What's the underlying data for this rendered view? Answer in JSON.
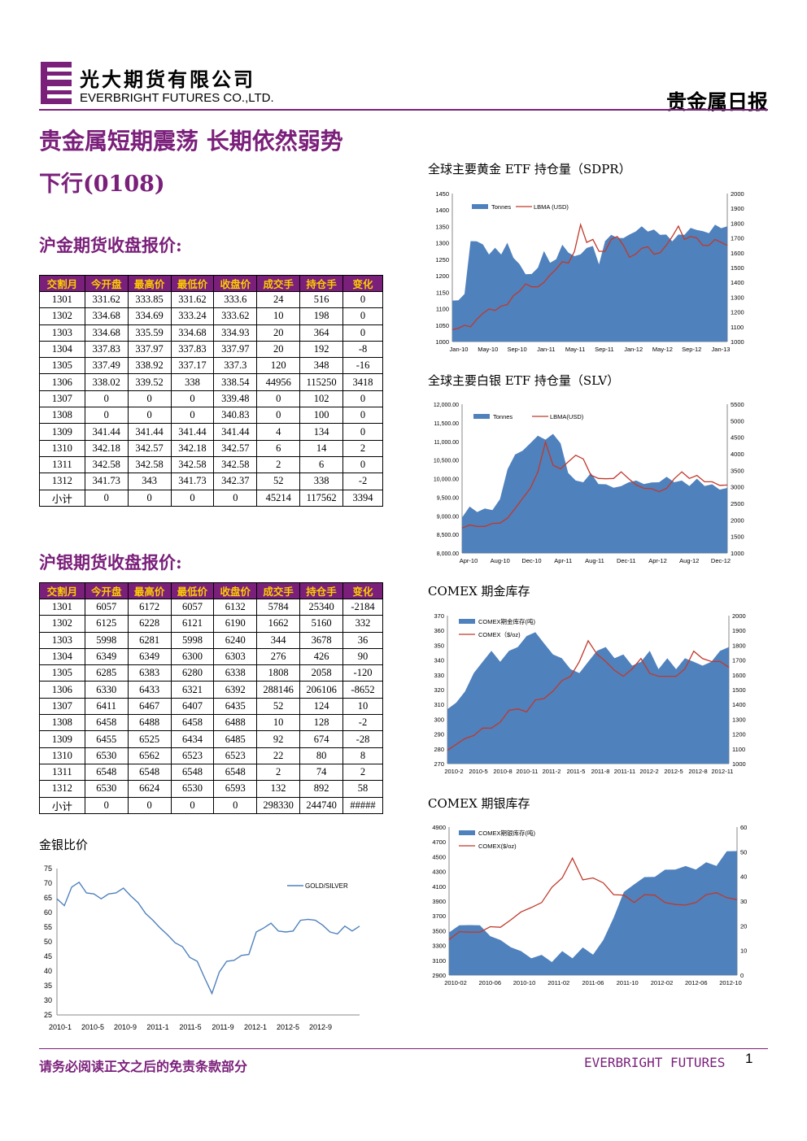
{
  "header": {
    "company_cn": "光大期货有限公司",
    "company_en": "EVERBRIGHT FUTURES CO.,LTD.",
    "report_type": "贵金属日报"
  },
  "headline": "贵金属短期震荡 长期依然弱势",
  "subheadline": "下行(0108)",
  "gold_futures": {
    "title": "沪金期货收盘报价:",
    "columns": [
      "交割月",
      "今开盘",
      "最高价",
      "最低价",
      "收盘价",
      "成交手",
      "持仓手",
      "变化"
    ],
    "rows": [
      [
        "1301",
        "331.62",
        "333.85",
        "331.62",
        "333.6",
        "24",
        "516",
        "0"
      ],
      [
        "1302",
        "334.68",
        "334.69",
        "333.24",
        "333.62",
        "10",
        "198",
        "0"
      ],
      [
        "1303",
        "334.68",
        "335.59",
        "334.68",
        "334.93",
        "20",
        "364",
        "0"
      ],
      [
        "1304",
        "337.83",
        "337.97",
        "337.83",
        "337.97",
        "20",
        "192",
        "-8"
      ],
      [
        "1305",
        "337.49",
        "338.92",
        "337.17",
        "337.3",
        "120",
        "348",
        "-16"
      ],
      [
        "1306",
        "338.02",
        "339.52",
        "338",
        "338.54",
        "44956",
        "115250",
        "3418"
      ],
      [
        "1307",
        "0",
        "0",
        "0",
        "339.48",
        "0",
        "102",
        "0"
      ],
      [
        "1308",
        "0",
        "0",
        "0",
        "340.83",
        "0",
        "100",
        "0"
      ],
      [
        "1309",
        "341.44",
        "341.44",
        "341.44",
        "341.44",
        "4",
        "134",
        "0"
      ],
      [
        "1310",
        "342.18",
        "342.57",
        "342.18",
        "342.57",
        "6",
        "14",
        "2"
      ],
      [
        "1311",
        "342.58",
        "342.58",
        "342.58",
        "342.58",
        "2",
        "6",
        "0"
      ],
      [
        "1312",
        "341.73",
        "343",
        "341.73",
        "342.37",
        "52",
        "338",
        "-2"
      ],
      [
        "小计",
        "0",
        "0",
        "0",
        "0",
        "45214",
        "117562",
        "3394"
      ]
    ]
  },
  "silver_futures": {
    "title": "沪银期货收盘报价:",
    "columns": [
      "交割月",
      "今开盘",
      "最高价",
      "最低价",
      "收盘价",
      "成交手",
      "持仓手",
      "变化"
    ],
    "rows": [
      [
        "1301",
        "6057",
        "6172",
        "6057",
        "6132",
        "5784",
        "25340",
        "-2184"
      ],
      [
        "1302",
        "6125",
        "6228",
        "6121",
        "6190",
        "1662",
        "5160",
        "332"
      ],
      [
        "1303",
        "5998",
        "6281",
        "5998",
        "6240",
        "344",
        "3678",
        "36"
      ],
      [
        "1304",
        "6349",
        "6349",
        "6300",
        "6303",
        "276",
        "426",
        "90"
      ],
      [
        "1305",
        "6285",
        "6383",
        "6280",
        "6338",
        "1808",
        "2058",
        "-120"
      ],
      [
        "1306",
        "6330",
        "6433",
        "6321",
        "6392",
        "288146",
        "206106",
        "-8652"
      ],
      [
        "1307",
        "6411",
        "6467",
        "6407",
        "6435",
        "52",
        "124",
        "10"
      ],
      [
        "1308",
        "6458",
        "6488",
        "6458",
        "6488",
        "10",
        "128",
        "-2"
      ],
      [
        "1309",
        "6455",
        "6525",
        "6434",
        "6485",
        "92",
        "674",
        "-28"
      ],
      [
        "1310",
        "6530",
        "6562",
        "6523",
        "6523",
        "22",
        "80",
        "8"
      ],
      [
        "1311",
        "6548",
        "6548",
        "6548",
        "6548",
        "2",
        "74",
        "2"
      ],
      [
        "1312",
        "6530",
        "6624",
        "6530",
        "6593",
        "132",
        "892",
        "58"
      ],
      [
        "小计",
        "0",
        "0",
        "0",
        "0",
        "298330",
        "244740",
        "#####"
      ]
    ]
  },
  "colors": {
    "brand_purple": "#7a1f7a",
    "header_text": "#ffcc00",
    "area_blue": "#4f81bd",
    "line_red": "#c0392b"
  },
  "chart_data": [
    {
      "id": "gold_etf",
      "type": "area",
      "title": "全球主要黄金 ETF 持仓量（SDPR）",
      "x_ticks": [
        "Jan-10",
        "May-10",
        "Sep-10",
        "Jan-11",
        "May-11",
        "Sep-11",
        "Jan-12",
        "May-12",
        "Sep-12",
        "Jan-13"
      ],
      "left_axis": {
        "ticks": [
          "1450",
          "1400",
          "1350",
          "1300",
          "1250",
          "1200",
          "1150",
          "1100",
          "1050",
          "1000"
        ],
        "range": [
          1000,
          1450
        ]
      },
      "right_axis": {
        "ticks": [
          "2000",
          "1900",
          "1800",
          "1700",
          "1600",
          "1500",
          "1400",
          "1300",
          "1200",
          "1100",
          "1000"
        ],
        "range": [
          1000,
          2000
        ]
      },
      "legend": [
        "Tonnes",
        "LBMA (USD)"
      ],
      "series": [
        {
          "name": "Tonnes",
          "axis": "left",
          "values": [
            1130,
            1120,
            1150,
            1300,
            1310,
            1290,
            1270,
            1280,
            1270,
            1295,
            1260,
            1230,
            1210,
            1200,
            1230,
            1270,
            1245,
            1245,
            1300,
            1265,
            1265,
            1260,
            1290,
            1285,
            1240,
            1300,
            1330,
            1310,
            1320,
            1320,
            1340,
            1345,
            1340,
            1335,
            1330,
            1320,
            1310,
            1320,
            1330,
            1340,
            1345,
            1330,
            1335,
            1350,
            1350,
            1345
          ]
        },
        {
          "name": "LBMA (USD)",
          "axis": "right",
          "values": [
            1090,
            1080,
            1120,
            1110,
            1140,
            1200,
            1230,
            1200,
            1250,
            1260,
            1300,
            1350,
            1400,
            1360,
            1380,
            1410,
            1440,
            1500,
            1550,
            1520,
            1620,
            1800,
            1660,
            1700,
            1620,
            1600,
            1700,
            1720,
            1640,
            1580,
            1600,
            1620,
            1650,
            1600,
            1590,
            1660,
            1720,
            1770,
            1700,
            1720,
            1690,
            1660,
            1660,
            1680,
            1680,
            1660
          ]
        }
      ]
    },
    {
      "id": "silver_etf",
      "type": "area",
      "title": "全球主要白银 ETF 持仓量（SLV）",
      "x_ticks": [
        "Apr-10",
        "Aug-10",
        "Dec-10",
        "Apr-11",
        "Aug-11",
        "Dec-11",
        "Apr-12",
        "Aug-12",
        "Dec-12"
      ],
      "left_axis": {
        "ticks": [
          "12,000.00",
          "11,500.00",
          "11,000.00",
          "10,500.00",
          "10,000.00",
          "9,500.00",
          "9,000.00",
          "8,500.00",
          "8,000.00"
        ],
        "range": [
          8000,
          12000
        ]
      },
      "right_axis": {
        "ticks": [
          "5500",
          "5000",
          "4500",
          "4000",
          "3500",
          "3000",
          "2500",
          "2000",
          "1500",
          "1000"
        ],
        "range": [
          1000,
          5500
        ]
      },
      "legend": [
        "Tonnes",
        "LBMA(USD)"
      ],
      "series": [
        {
          "name": "Tonnes",
          "axis": "left",
          "values": [
            9000,
            9200,
            9150,
            9150,
            9200,
            9400,
            10300,
            10600,
            10800,
            10900,
            11200,
            11000,
            11250,
            10900,
            10200,
            9900,
            9950,
            10100,
            9900,
            9800,
            9800,
            9750,
            9950,
            9900,
            9900,
            9850,
            9950,
            10000,
            9950,
            9900,
            9850,
            9950,
            9850,
            9800,
            9750,
            9700
          ]
        },
        {
          "name": "LBMA(USD)",
          "axis": "right",
          "values": [
            1800,
            1800,
            1850,
            1850,
            1850,
            1950,
            2100,
            2300,
            2700,
            3000,
            3400,
            4400,
            3700,
            3500,
            3800,
            4000,
            3800,
            3400,
            3300,
            3200,
            3300,
            3500,
            3200,
            3100,
            3000,
            2900,
            2900,
            3000,
            3200,
            3500,
            3300,
            3300,
            3200,
            3200,
            3000,
            3100
          ]
        }
      ]
    },
    {
      "id": "comex_gold",
      "type": "area",
      "title": "COMEX 期金库存",
      "x_ticks": [
        "2010-2",
        "2010-5",
        "2010-8",
        "2010-11",
        "2011-2",
        "2011-5",
        "2011-8",
        "2011-11",
        "2012-2",
        "2012-5",
        "2012-8",
        "2012-11"
      ],
      "left_axis": {
        "ticks": [
          "370",
          "360",
          "350",
          "340",
          "330",
          "320",
          "310",
          "300",
          "290",
          "280",
          "270"
        ],
        "range": [
          270,
          370
        ]
      },
      "right_axis": {
        "ticks": [
          "2000",
          "1900",
          "1800",
          "1700",
          "1600",
          "1500",
          "1400",
          "1300",
          "1200",
          "1100",
          "1000"
        ],
        "range": [
          1000,
          2000
        ]
      },
      "legend": [
        "COMEX期金库存(吨)",
        "COMEX（$/oz)"
      ],
      "series": [
        {
          "name": "COMEX期金库存(吨)",
          "axis": "left",
          "values": [
            308,
            310,
            320,
            330,
            340,
            345,
            340,
            345,
            350,
            355,
            360,
            350,
            345,
            340,
            335,
            330,
            340,
            345,
            350,
            340,
            345,
            335,
            340,
            345,
            335,
            340,
            335,
            340,
            340,
            335,
            340,
            345,
            350
          ]
        },
        {
          "name": "COMEX（$/oz)",
          "axis": "right",
          "values": [
            1100,
            1120,
            1180,
            1200,
            1230,
            1250,
            1290,
            1350,
            1380,
            1360,
            1420,
            1450,
            1500,
            1550,
            1600,
            1700,
            1820,
            1750,
            1700,
            1620,
            1600,
            1650,
            1700,
            1620,
            1600,
            1580,
            1600,
            1650,
            1750,
            1720,
            1700,
            1680,
            1660
          ]
        }
      ]
    },
    {
      "id": "comex_silver",
      "type": "area",
      "title": "COMEX 期银库存",
      "x_ticks": [
        "2010-02",
        "2010-06",
        "2010-10",
        "2011-02",
        "2011-06",
        "2011-10",
        "2012-02",
        "2012-06",
        "2012-10"
      ],
      "left_axis": {
        "ticks": [
          "4900",
          "4700",
          "4500",
          "4300",
          "4100",
          "3900",
          "3700",
          "3500",
          "3300",
          "3100",
          "2900"
        ],
        "range": [
          2900,
          4900
        ]
      },
      "right_axis": {
        "ticks": [
          "60",
          "50",
          "40",
          "30",
          "20",
          "10",
          "0"
        ],
        "range": [
          0,
          60
        ]
      },
      "legend": [
        "COMEX期银库存(吨)",
        "COMEX($/oz)"
      ],
      "series": [
        {
          "name": "COMEX期银库存(吨)",
          "axis": "left",
          "values": [
            3500,
            3550,
            3600,
            3550,
            3450,
            3350,
            3300,
            3200,
            3150,
            3150,
            3100,
            3200,
            3150,
            3250,
            3200,
            3350,
            3700,
            4000,
            4150,
            4200,
            4250,
            4300,
            4350,
            4350,
            4350,
            4400,
            4400,
            4550,
            4600
          ]
        },
        {
          "name": "COMEX($/oz)",
          "axis": "right",
          "values": [
            15,
            17,
            18,
            18,
            19,
            20,
            23,
            25,
            28,
            30,
            35,
            40,
            48,
            38,
            40,
            38,
            32,
            33,
            30,
            32,
            33,
            30,
            28,
            29,
            30,
            32,
            34,
            32,
            30
          ]
        }
      ]
    },
    {
      "id": "gold_silver_ratio",
      "type": "line",
      "title": "金银比价",
      "x_ticks": [
        "2010-1",
        "2010-5",
        "2010-9",
        "2011-1",
        "2011-5",
        "2011-9",
        "2012-1",
        "2012-5",
        "2012-9"
      ],
      "y_ticks": [
        "75",
        "70",
        "65",
        "60",
        "55",
        "50",
        "45",
        "40",
        "35",
        "30",
        "25"
      ],
      "ylim": [
        25,
        75
      ],
      "legend": [
        "GOLD/SILVER"
      ],
      "series": [
        {
          "name": "GOLD/SILVER",
          "values": [
            65,
            62,
            69,
            70,
            67,
            66,
            65,
            66,
            67,
            68,
            66,
            63,
            60,
            57,
            55,
            52,
            50,
            48,
            45,
            43,
            38,
            32,
            40,
            43,
            44,
            45,
            46,
            53,
            55,
            56,
            54,
            53,
            54,
            57,
            58,
            57,
            56,
            53,
            53,
            55,
            54,
            55
          ]
        }
      ]
    }
  ],
  "footer": {
    "disclaimer": "请务必阅读正文之后的免责条款部分",
    "brand": "EVERBRIGHT FUTURES",
    "page_number": "1"
  }
}
